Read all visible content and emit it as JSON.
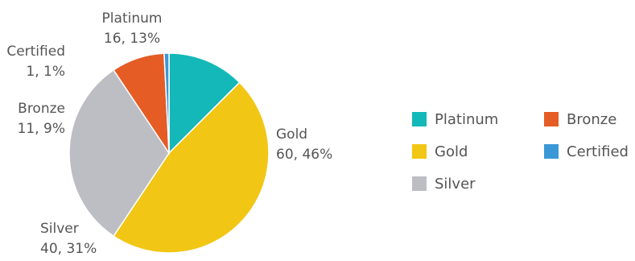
{
  "chart_data": {
    "type": "pie",
    "title": "",
    "slices": [
      {
        "name": "Platinum",
        "value": 16,
        "percent": "13%",
        "color": "#14b8b8"
      },
      {
        "name": "Gold",
        "value": 60,
        "percent": "46%",
        "color": "#f2c614"
      },
      {
        "name": "Silver",
        "value": 40,
        "percent": "31%",
        "color": "#bdbdc4"
      },
      {
        "name": "Bronze",
        "value": 11,
        "percent": "9%",
        "color": "#e55c25"
      },
      {
        "name": "Certified",
        "value": 1,
        "percent": "1%",
        "color": "#3b98d6"
      }
    ],
    "legend": {
      "position": "right",
      "columns": 2,
      "order": [
        "Platinum",
        "Bronze",
        "Gold",
        "Certified",
        "Silver"
      ]
    },
    "start_angle": "12 o'clock",
    "direction": "clockwise"
  }
}
